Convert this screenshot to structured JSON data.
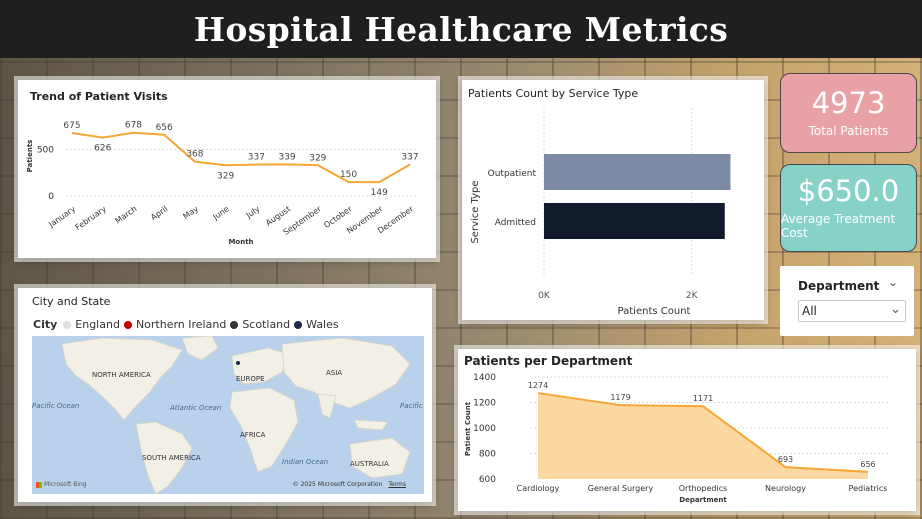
{
  "header": {
    "title": "Hospital Healthcare Metrics"
  },
  "colors": {
    "line": "#f5a634",
    "bar_outpatient": "#7b8ba3",
    "bar_admitted": "#111b2c",
    "kpi_total_bg": "#e8a1a4",
    "kpi_cost_bg": "#87d2c6",
    "area_fill": "#fbd7a2",
    "england": "#e0e0e0",
    "northern_ireland": "#c00000",
    "scotland": "#333333",
    "wales": "#1d2a4d"
  },
  "visits_card": {
    "title": "Trend of Patient Visits",
    "chart_data": {
      "type": "line",
      "title": "Trend of Patient Visits",
      "xlabel": "Month",
      "ylabel": "Patients",
      "ylim": [
        0,
        900
      ],
      "yticks": [
        0,
        500
      ],
      "categories": [
        "January",
        "February",
        "March",
        "April",
        "May",
        "June",
        "July",
        "August",
        "September",
        "October",
        "November",
        "December"
      ],
      "values": [
        675,
        626,
        678,
        656,
        368,
        329,
        337,
        339,
        329,
        150,
        149,
        337
      ],
      "labels": [
        "675",
        "626",
        "678",
        "656",
        "368",
        "329",
        "337",
        "339",
        "329",
        "150",
        "149",
        "337"
      ]
    }
  },
  "service_card": {
    "title": "Patients Count by Service Type",
    "chart_data": {
      "type": "bar",
      "orientation": "horizontal",
      "title": "Patients Count by Service Type",
      "xlabel": "Patients Count",
      "ylabel": "Service Type",
      "categories": [
        "Outpatient",
        "Admitted"
      ],
      "values": [
        2525,
        2448
      ],
      "xlim": [
        0,
        2600
      ],
      "xticks": [
        "0K",
        "2K"
      ]
    }
  },
  "kpi_total": {
    "value": "4973",
    "label": "Total Patients"
  },
  "kpi_cost": {
    "value": "$650.0",
    "label": "Average Treatment Cost"
  },
  "slicer": {
    "title": "Department",
    "value": "All"
  },
  "map_card": {
    "title": "City and State",
    "legend_label": "City",
    "legend": [
      {
        "name": "England",
        "color": "#e0e0e0"
      },
      {
        "name": "Northern Ireland",
        "color": "#c00000"
      },
      {
        "name": "Scotland",
        "color": "#333333"
      },
      {
        "name": "Wales",
        "color": "#1d2a4d"
      }
    ],
    "labels": {
      "north_america": "NORTH AMERICA",
      "europe": "EUROPE",
      "asia": "ASIA",
      "africa": "AFRICA",
      "south_america": "SOUTH AMERICA",
      "australia": "AUSTRALIA",
      "pacific_left": "Pacific Ocean",
      "atlantic": "Atlantic Ocean",
      "indian": "Indian Ocean",
      "pacific_right": "Pacific"
    },
    "attribution": "© 2025 Microsoft Corporation",
    "terms": "Terms",
    "brand": "Microsoft Bing"
  },
  "dept_card": {
    "title": "Patients per Department",
    "chart_data": {
      "type": "area",
      "title": "Patients per Department",
      "xlabel": "Department",
      "ylabel": "Patient Count",
      "ylim": [
        600,
        1400
      ],
      "yticks": [
        600,
        800,
        1000,
        1200,
        1400
      ],
      "categories": [
        "Cardiology",
        "General Surgery",
        "Orthopedics",
        "Neurology",
        "Pediatrics"
      ],
      "values": [
        1274,
        1179,
        1171,
        693,
        656
      ],
      "labels": [
        "1274",
        "1179",
        "1171",
        "693",
        "656"
      ]
    }
  }
}
